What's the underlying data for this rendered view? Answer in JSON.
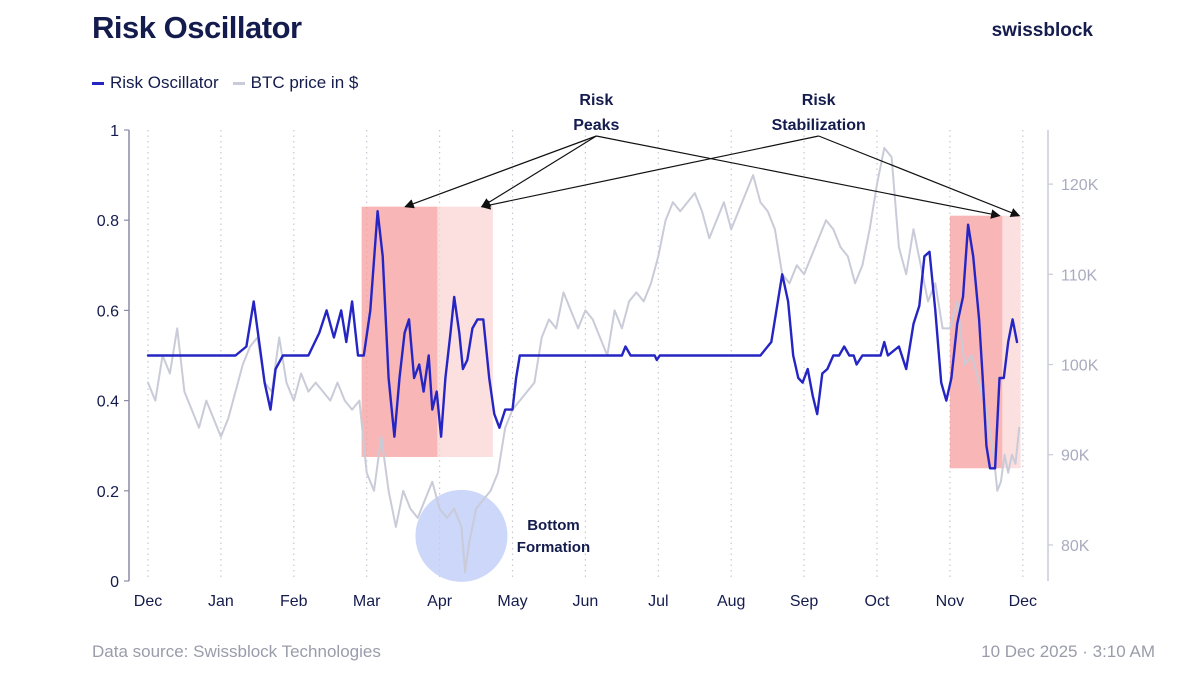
{
  "header": {
    "title": "Risk Oscillator",
    "brand": "swissblock"
  },
  "footer": {
    "source": "Data source: Swissblock Technologies",
    "date": "10 Dec 2025 · 3:10 AM"
  },
  "colors": {
    "risk_line": "#2525c4",
    "btc_line": "#c9cbd8",
    "peak_zone": "#f79a9a",
    "stab_zone": "#fbd3d3",
    "bottom_circle": "#bfcdf8",
    "text": "#141b4d",
    "axis": "#8a8ca8"
  },
  "chart_data": {
    "type": "line",
    "title": "Risk Oscillator",
    "x_labels": [
      "Dec",
      "Jan",
      "Feb",
      "Mar",
      "Apr",
      "May",
      "Jun",
      "Jul",
      "Aug",
      "Sep",
      "Oct",
      "Nov",
      "Dec"
    ],
    "y_left": {
      "ticks": [
        "0",
        "0.2",
        "0.4",
        "0.6",
        "0.8",
        "1"
      ],
      "min": 0,
      "max": 1
    },
    "y_right": {
      "ticks": [
        "80K",
        "90K",
        "100K",
        "110K",
        "120K"
      ],
      "min": 76000,
      "max": 126000
    },
    "legend": [
      "Risk Oscillator",
      "BTC price in $"
    ],
    "series": [
      {
        "name": "Risk Oscillator",
        "axis": "left",
        "points": [
          [
            0,
            0.5
          ],
          [
            1.2,
            0.5
          ],
          [
            1.35,
            0.52
          ],
          [
            1.45,
            0.62
          ],
          [
            1.55,
            0.5
          ],
          [
            1.6,
            0.44
          ],
          [
            1.68,
            0.38
          ],
          [
            1.75,
            0.47
          ],
          [
            1.85,
            0.5
          ],
          [
            2.2,
            0.5
          ],
          [
            2.35,
            0.55
          ],
          [
            2.45,
            0.6
          ],
          [
            2.55,
            0.54
          ],
          [
            2.65,
            0.6
          ],
          [
            2.72,
            0.53
          ],
          [
            2.8,
            0.62
          ],
          [
            2.88,
            0.5
          ],
          [
            2.96,
            0.5
          ],
          [
            3.05,
            0.6
          ],
          [
            3.15,
            0.82
          ],
          [
            3.22,
            0.72
          ],
          [
            3.3,
            0.45
          ],
          [
            3.38,
            0.32
          ],
          [
            3.45,
            0.45
          ],
          [
            3.52,
            0.55
          ],
          [
            3.58,
            0.58
          ],
          [
            3.65,
            0.45
          ],
          [
            3.72,
            0.48
          ],
          [
            3.78,
            0.42
          ],
          [
            3.85,
            0.5
          ],
          [
            3.9,
            0.38
          ],
          [
            3.96,
            0.42
          ],
          [
            4.02,
            0.32
          ],
          [
            4.08,
            0.45
          ],
          [
            4.15,
            0.55
          ],
          [
            4.2,
            0.63
          ],
          [
            4.27,
            0.55
          ],
          [
            4.32,
            0.47
          ],
          [
            4.38,
            0.49
          ],
          [
            4.45,
            0.56
          ],
          [
            4.52,
            0.58
          ],
          [
            4.6,
            0.58
          ],
          [
            4.68,
            0.45
          ],
          [
            4.75,
            0.37
          ],
          [
            4.82,
            0.34
          ],
          [
            4.9,
            0.38
          ],
          [
            5.0,
            0.38
          ],
          [
            5.05,
            0.45
          ],
          [
            5.1,
            0.5
          ],
          [
            6.5,
            0.5
          ],
          [
            6.55,
            0.52
          ],
          [
            6.62,
            0.5
          ],
          [
            6.95,
            0.5
          ],
          [
            6.98,
            0.49
          ],
          [
            7.02,
            0.5
          ],
          [
            8.4,
            0.5
          ],
          [
            8.55,
            0.53
          ],
          [
            8.62,
            0.6
          ],
          [
            8.7,
            0.68
          ],
          [
            8.78,
            0.62
          ],
          [
            8.85,
            0.5
          ],
          [
            8.92,
            0.45
          ],
          [
            8.98,
            0.44
          ],
          [
            9.05,
            0.47
          ],
          [
            9.12,
            0.41
          ],
          [
            9.18,
            0.37
          ],
          [
            9.25,
            0.46
          ],
          [
            9.32,
            0.47
          ],
          [
            9.4,
            0.5
          ],
          [
            9.48,
            0.5
          ],
          [
            9.55,
            0.52
          ],
          [
            9.62,
            0.5
          ],
          [
            9.68,
            0.5
          ],
          [
            9.72,
            0.48
          ],
          [
            9.8,
            0.5
          ],
          [
            10.05,
            0.5
          ],
          [
            10.1,
            0.53
          ],
          [
            10.15,
            0.5
          ],
          [
            10.3,
            0.52
          ],
          [
            10.4,
            0.47
          ],
          [
            10.5,
            0.57
          ],
          [
            10.58,
            0.61
          ],
          [
            10.65,
            0.72
          ],
          [
            10.72,
            0.73
          ],
          [
            10.8,
            0.6
          ],
          [
            10.88,
            0.44
          ],
          [
            10.95,
            0.4
          ],
          [
            11.02,
            0.45
          ],
          [
            11.1,
            0.57
          ],
          [
            11.18,
            0.63
          ],
          [
            11.25,
            0.79
          ],
          [
            11.32,
            0.72
          ],
          [
            11.4,
            0.58
          ],
          [
            11.45,
            0.45
          ],
          [
            11.5,
            0.3
          ],
          [
            11.55,
            0.25
          ],
          [
            11.62,
            0.25
          ],
          [
            11.68,
            0.45
          ],
          [
            11.74,
            0.45
          ],
          [
            11.8,
            0.53
          ],
          [
            11.86,
            0.58
          ],
          [
            11.92,
            0.53
          ]
        ]
      },
      {
        "name": "BTC price in $",
        "axis": "right",
        "points": [
          [
            0,
            98000
          ],
          [
            0.1,
            96000
          ],
          [
            0.2,
            101000
          ],
          [
            0.3,
            99000
          ],
          [
            0.4,
            104000
          ],
          [
            0.5,
            97000
          ],
          [
            0.6,
            95000
          ],
          [
            0.7,
            93000
          ],
          [
            0.8,
            96000
          ],
          [
            0.9,
            94000
          ],
          [
            1.0,
            92000
          ],
          [
            1.1,
            94000
          ],
          [
            1.2,
            97000
          ],
          [
            1.3,
            100000
          ],
          [
            1.4,
            102000
          ],
          [
            1.5,
            103000
          ],
          [
            1.6,
            98000
          ],
          [
            1.7,
            97000
          ],
          [
            1.8,
            103000
          ],
          [
            1.9,
            98000
          ],
          [
            2.0,
            96000
          ],
          [
            2.1,
            99000
          ],
          [
            2.2,
            97000
          ],
          [
            2.3,
            98000
          ],
          [
            2.4,
            97000
          ],
          [
            2.5,
            96000
          ],
          [
            2.6,
            98000
          ],
          [
            2.7,
            96000
          ],
          [
            2.8,
            95000
          ],
          [
            2.9,
            96000
          ],
          [
            3.0,
            88000
          ],
          [
            3.1,
            86000
          ],
          [
            3.2,
            92000
          ],
          [
            3.3,
            86000
          ],
          [
            3.4,
            82000
          ],
          [
            3.5,
            86000
          ],
          [
            3.6,
            84000
          ],
          [
            3.7,
            83000
          ],
          [
            3.8,
            85000
          ],
          [
            3.9,
            87000
          ],
          [
            4.0,
            84000
          ],
          [
            4.1,
            83000
          ],
          [
            4.2,
            84000
          ],
          [
            4.3,
            82000
          ],
          [
            4.35,
            77000
          ],
          [
            4.4,
            80000
          ],
          [
            4.5,
            84000
          ],
          [
            4.6,
            85000
          ],
          [
            4.7,
            86000
          ],
          [
            4.8,
            88000
          ],
          [
            4.9,
            93000
          ],
          [
            5.0,
            95000
          ],
          [
            5.1,
            96000
          ],
          [
            5.2,
            97000
          ],
          [
            5.3,
            98000
          ],
          [
            5.4,
            103000
          ],
          [
            5.5,
            105000
          ],
          [
            5.6,
            104000
          ],
          [
            5.7,
            108000
          ],
          [
            5.8,
            106000
          ],
          [
            5.9,
            104000
          ],
          [
            6.0,
            106000
          ],
          [
            6.1,
            105000
          ],
          [
            6.2,
            103000
          ],
          [
            6.3,
            101000
          ],
          [
            6.4,
            106000
          ],
          [
            6.5,
            104000
          ],
          [
            6.6,
            107000
          ],
          [
            6.7,
            108000
          ],
          [
            6.8,
            107000
          ],
          [
            6.9,
            109000
          ],
          [
            7.0,
            112000
          ],
          [
            7.1,
            116000
          ],
          [
            7.2,
            118000
          ],
          [
            7.3,
            117000
          ],
          [
            7.4,
            118000
          ],
          [
            7.5,
            119000
          ],
          [
            7.6,
            117000
          ],
          [
            7.7,
            114000
          ],
          [
            7.8,
            116000
          ],
          [
            7.9,
            118000
          ],
          [
            8.0,
            115000
          ],
          [
            8.1,
            117000
          ],
          [
            8.2,
            119000
          ],
          [
            8.3,
            121000
          ],
          [
            8.4,
            118000
          ],
          [
            8.5,
            117000
          ],
          [
            8.6,
            115000
          ],
          [
            8.7,
            110000
          ],
          [
            8.8,
            109000
          ],
          [
            8.9,
            111000
          ],
          [
            9.0,
            110000
          ],
          [
            9.1,
            112000
          ],
          [
            9.2,
            114000
          ],
          [
            9.3,
            116000
          ],
          [
            9.4,
            115000
          ],
          [
            9.5,
            113000
          ],
          [
            9.6,
            112000
          ],
          [
            9.7,
            109000
          ],
          [
            9.8,
            111000
          ],
          [
            9.9,
            115000
          ],
          [
            10.0,
            120000
          ],
          [
            10.1,
            124000
          ],
          [
            10.2,
            123000
          ],
          [
            10.3,
            113000
          ],
          [
            10.4,
            110000
          ],
          [
            10.5,
            115000
          ],
          [
            10.6,
            111000
          ],
          [
            10.7,
            107000
          ],
          [
            10.8,
            109000
          ],
          [
            10.9,
            104000
          ],
          [
            11.0,
            104000
          ],
          [
            11.1,
            107000
          ],
          [
            11.2,
            100000
          ],
          [
            11.3,
            101000
          ],
          [
            11.4,
            98000
          ],
          [
            11.5,
            95000
          ],
          [
            11.6,
            90000
          ],
          [
            11.65,
            86000
          ],
          [
            11.7,
            87000
          ],
          [
            11.75,
            90000
          ],
          [
            11.8,
            88000
          ],
          [
            11.85,
            90000
          ],
          [
            11.9,
            89000
          ],
          [
            11.95,
            93000
          ]
        ]
      }
    ],
    "highlights": [
      {
        "label": "Risk Peaks (Mar)",
        "x_start": 2.93,
        "x_end": 3.97,
        "y_top": 0.83,
        "y_bottom": 0.275,
        "kind": "peak"
      },
      {
        "label": "Risk Stabilization (Apr)",
        "x_start": 3.97,
        "x_end": 4.73,
        "y_top": 0.83,
        "y_bottom": 0.275,
        "kind": "stab"
      },
      {
        "label": "Risk Peaks (Nov)",
        "x_start": 11.0,
        "x_end": 11.72,
        "y_top": 0.81,
        "y_bottom": 0.25,
        "kind": "peak"
      },
      {
        "label": "Risk Stabilization (Dec)",
        "x_start": 11.72,
        "x_end": 11.97,
        "y_top": 0.81,
        "y_bottom": 0.25,
        "kind": "stab"
      }
    ],
    "annotations": [
      {
        "line1": "Risk",
        "line2": "Peaks",
        "anchor_x": 6.15,
        "targets": [
          [
            3.53,
            0.83
          ],
          [
            4.58,
            0.83
          ],
          [
            11.68,
            0.81
          ]
        ]
      },
      {
        "line1": "Risk",
        "line2": "Stabilization",
        "anchor_x": 9.2,
        "targets": [
          [
            4.58,
            0.83
          ],
          [
            11.95,
            0.81
          ]
        ]
      },
      {
        "line1": "Bottom",
        "line2": "Formation",
        "circle_x": 4.3,
        "circle_y": 0.1
      }
    ]
  }
}
